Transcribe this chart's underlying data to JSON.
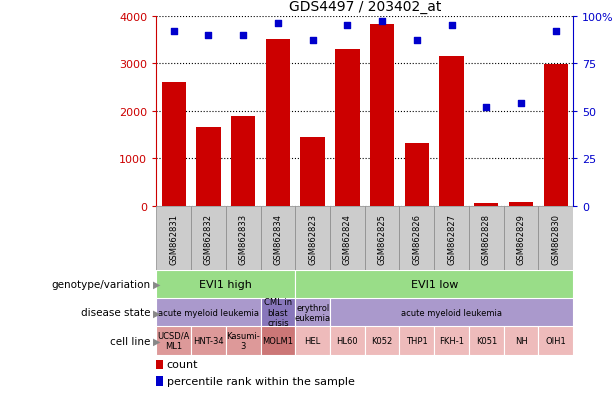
{
  "title": "GDS4497 / 203402_at",
  "samples": [
    "GSM862831",
    "GSM862832",
    "GSM862833",
    "GSM862834",
    "GSM862823",
    "GSM862824",
    "GSM862825",
    "GSM862826",
    "GSM862827",
    "GSM862828",
    "GSM862829",
    "GSM862830"
  ],
  "counts": [
    2600,
    1650,
    1900,
    3500,
    1450,
    3300,
    3820,
    1320,
    3150,
    60,
    75,
    2980
  ],
  "percentiles": [
    92,
    90,
    90,
    96,
    87,
    95,
    97,
    87,
    95,
    52,
    54,
    92
  ],
  "ylim_left": [
    0,
    4000
  ],
  "ylim_right": [
    0,
    100
  ],
  "yticks_left": [
    0,
    1000,
    2000,
    3000,
    4000
  ],
  "yticks_right": [
    0,
    25,
    50,
    75,
    100
  ],
  "bar_color": "#cc0000",
  "dot_color": "#0000cc",
  "background_color": "#ffffff",
  "genotype_groups": [
    {
      "label": "EVI1 high",
      "start": 0,
      "end": 4,
      "color": "#99dd88"
    },
    {
      "label": "EVI1 low",
      "start": 4,
      "end": 12,
      "color": "#99dd88"
    }
  ],
  "disease_groups": [
    {
      "label": "acute myeloid leukemia",
      "start": 0,
      "end": 3,
      "color": "#aa99cc"
    },
    {
      "label": "CML in\nblast\ncrisis",
      "start": 3,
      "end": 4,
      "color": "#8877bb"
    },
    {
      "label": "erythrol\neukemia",
      "start": 4,
      "end": 5,
      "color": "#aa99cc"
    },
    {
      "label": "acute myeloid leukemia",
      "start": 5,
      "end": 12,
      "color": "#aa99cc"
    }
  ],
  "cell_lines": [
    {
      "label": "UCSD/A\nML1",
      "start": 0,
      "end": 1,
      "color": "#dd9999"
    },
    {
      "label": "HNT-34",
      "start": 1,
      "end": 2,
      "color": "#dd9999"
    },
    {
      "label": "Kasumi-\n3",
      "start": 2,
      "end": 3,
      "color": "#dd9999"
    },
    {
      "label": "MOLM1",
      "start": 3,
      "end": 4,
      "color": "#cc7777"
    },
    {
      "label": "HEL",
      "start": 4,
      "end": 5,
      "color": "#eebbbb"
    },
    {
      "label": "HL60",
      "start": 5,
      "end": 6,
      "color": "#eebbbb"
    },
    {
      "label": "K052",
      "start": 6,
      "end": 7,
      "color": "#eebbbb"
    },
    {
      "label": "THP1",
      "start": 7,
      "end": 8,
      "color": "#eebbbb"
    },
    {
      "label": "FKH-1",
      "start": 8,
      "end": 9,
      "color": "#eebbbb"
    },
    {
      "label": "K051",
      "start": 9,
      "end": 10,
      "color": "#eebbbb"
    },
    {
      "label": "NH",
      "start": 10,
      "end": 11,
      "color": "#eebbbb"
    },
    {
      "label": "OIH1",
      "start": 11,
      "end": 12,
      "color": "#eebbbb"
    }
  ],
  "row_labels": [
    "genotype/variation",
    "disease state",
    "cell line"
  ],
  "xtick_bg": "#cccccc",
  "xtick_border": "#888888"
}
